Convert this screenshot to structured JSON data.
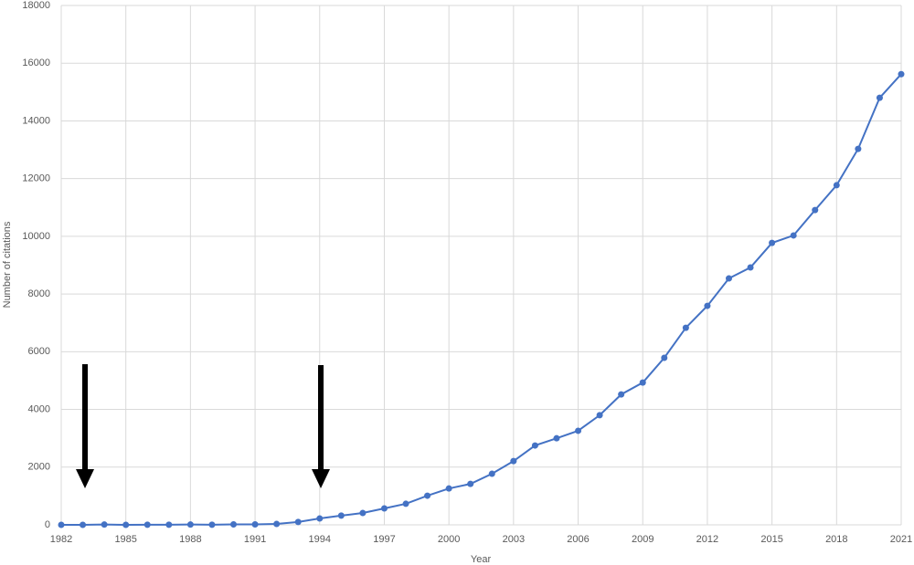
{
  "chart_data": {
    "type": "line",
    "x_label": "Year",
    "y_label": "Number of citations",
    "x": [
      1982,
      1983,
      1984,
      1985,
      1986,
      1987,
      1988,
      1989,
      1990,
      1991,
      1992,
      1993,
      1994,
      1995,
      1996,
      1997,
      1998,
      1999,
      2000,
      2001,
      2002,
      2003,
      2004,
      2005,
      2006,
      2007,
      2008,
      2009,
      2010,
      2011,
      2012,
      2013,
      2014,
      2015,
      2016,
      2017,
      2018,
      2019,
      2020,
      2021
    ],
    "series": [
      {
        "color": "#4472c4",
        "values": [
          0,
          0,
          10,
          0,
          5,
          5,
          10,
          5,
          15,
          15,
          30,
          100,
          220,
          320,
          410,
          570,
          730,
          1010,
          1260,
          1420,
          1770,
          2210,
          2750,
          3000,
          3260,
          3800,
          4520,
          4930,
          5790,
          6830,
          7590,
          8540,
          8920,
          9770,
          10030,
          10910,
          11770,
          13030,
          14800,
          15620
        ]
      }
    ],
    "xlim": [
      1982,
      2021
    ],
    "xticks": [
      1982,
      1985,
      1988,
      1991,
      1994,
      1997,
      2000,
      2003,
      2006,
      2009,
      2012,
      2015,
      2018,
      2021
    ],
    "ylim": [
      0,
      18000
    ],
    "yticks": [
      0,
      2000,
      4000,
      6000,
      8000,
      10000,
      12000,
      14000,
      16000,
      18000
    ],
    "grid": true
  }
}
